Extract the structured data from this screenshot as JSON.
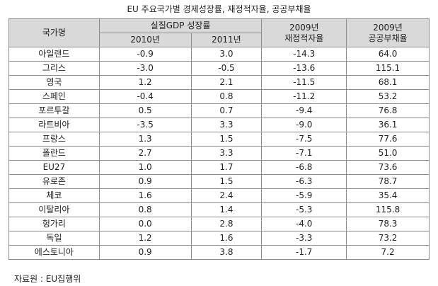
{
  "title": "EU 주요국가별 경제성장률, 재정적자율, 공공부채율",
  "header": {
    "country": "국가명",
    "gdp": "실질GDP 성장률",
    "y2010": "2010년",
    "y2011": "2011년",
    "deficit": [
      "2009년",
      "재정적자율"
    ],
    "debt": [
      "2009년",
      "공공부채율"
    ]
  },
  "table": {
    "rows": [
      [
        "아일랜드",
        "-0.9",
        "3.0",
        "-14.3",
        "64.0"
      ],
      [
        "그리스",
        "-3.0",
        "-0.5",
        "-13.6",
        "115.1"
      ],
      [
        "영국",
        "1.2",
        "2.1",
        "-11.5",
        "68.1"
      ],
      [
        "스페인",
        "-0.4",
        "0.8",
        "-11.2",
        "53.2"
      ],
      [
        "포르투갈",
        "0.5",
        "0.7",
        "-9.4",
        "76.8"
      ],
      [
        "라트비아",
        "-3.5",
        "3.3",
        "-9.0",
        "36.1"
      ],
      [
        "프랑스",
        "1.3",
        "1.5",
        "-7.5",
        "77.6"
      ],
      [
        "폴란드",
        "2.7",
        "3.3",
        "-7.1",
        "51.0"
      ],
      [
        "EU27",
        "1.0",
        "1.7",
        "-6.8",
        "73.6"
      ],
      [
        "유로존",
        "0.9",
        "1.5",
        "-6.3",
        "78.7"
      ],
      [
        "체코",
        "1.6",
        "2.4",
        "-5.9",
        "35.4"
      ],
      [
        "이탈리아",
        "0.8",
        "1.4",
        "-5.3",
        "115.8"
      ],
      [
        "헝가리",
        "0.0",
        "2.8",
        "-4.0",
        "78.3"
      ],
      [
        "독일",
        "1.2",
        "1.6",
        "-3.3",
        "73.2"
      ],
      [
        "에스토니아",
        "0.9",
        "3.8",
        "-1.7",
        "7.2"
      ]
    ]
  },
  "source": "자료원 : EU집행위"
}
